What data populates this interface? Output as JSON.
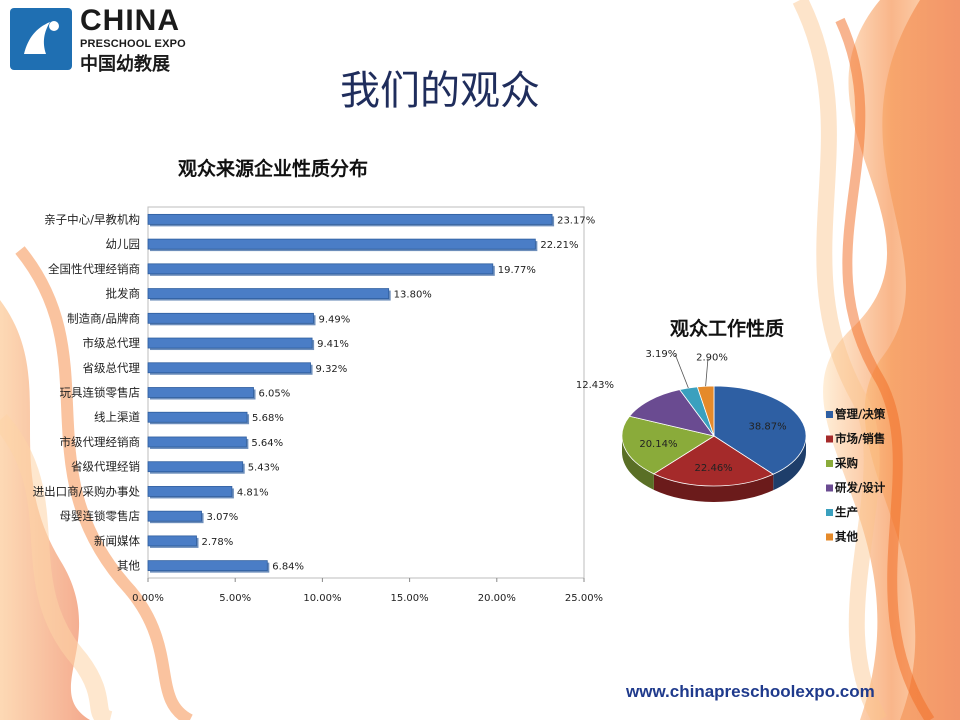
{
  "logo": {
    "title": "CHINA",
    "subtitle": "PRESCHOOL EXPO",
    "cn": "中国幼教展"
  },
  "slide": {
    "title": "我们的观众",
    "footer_url": "www.chinapreschoolexpo.com"
  },
  "colors": {
    "bar": "#4a7dc6",
    "bar_dark": "#2f5e9e",
    "title": "#1f2d5c"
  },
  "chart_data": [
    {
      "type": "bar",
      "orientation": "horizontal",
      "title": "观众来源企业性质分布",
      "categories": [
        "亲子中心/早教机构",
        "幼儿园",
        "全国性代理经销商",
        "批发商",
        "制造商/品牌商",
        "市级总代理",
        "省级总代理",
        "玩具连锁零售店",
        "线上渠道",
        "市级代理经销商",
        "省级代理经销",
        "进出口商/采购办事处",
        "母婴连锁零售店",
        "新闻媒体",
        "其他"
      ],
      "values": [
        23.17,
        22.21,
        19.77,
        13.8,
        9.49,
        9.41,
        9.32,
        6.05,
        5.68,
        5.64,
        5.43,
        4.81,
        3.07,
        2.78,
        6.84
      ],
      "value_labels": [
        "23.17%",
        "22.21%",
        "19.77%",
        "13.80%",
        "9.49%",
        "9.41%",
        "9.32%",
        "6.05%",
        "5.68%",
        "5.64%",
        "5.43%",
        "4.81%",
        "3.07%",
        "2.78%",
        "6.84%"
      ],
      "xlim": [
        0,
        25
      ],
      "xticks": [
        "0.00%",
        "5.00%",
        "10.00%",
        "15.00%",
        "20.00%",
        "25.00%"
      ],
      "grid": false
    },
    {
      "type": "pie",
      "title": "观众工作性质",
      "legend_position": "right",
      "slices": [
        {
          "label": "管理/决策",
          "value": 38.87,
          "value_label": "38.87%",
          "color": "#2e5fa3"
        },
        {
          "label": "市场/销售",
          "value": 22.46,
          "value_label": "22.46%",
          "color": "#a52a2a"
        },
        {
          "label": "采购",
          "value": 20.14,
          "value_label": "20.14%",
          "color": "#8aab3a"
        },
        {
          "label": "研发/设计",
          "value": 12.43,
          "value_label": "12.43%",
          "color": "#6a4b91"
        },
        {
          "label": "生产",
          "value": 3.19,
          "value_label": "3.19%",
          "color": "#3aa0be"
        },
        {
          "label": "其他",
          "value": 2.9,
          "value_label": "2.90%",
          "color": "#e58a2a"
        }
      ]
    }
  ]
}
